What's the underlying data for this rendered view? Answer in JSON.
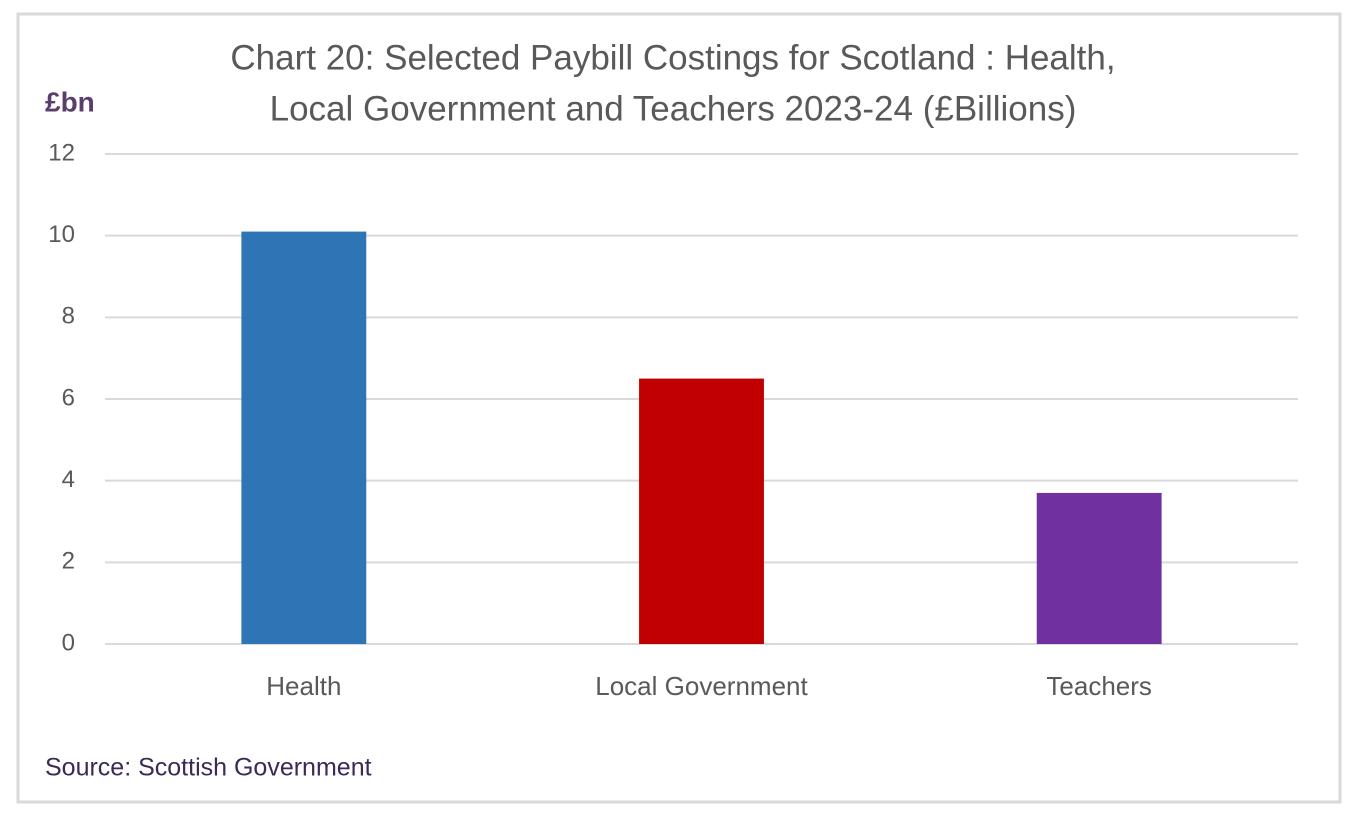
{
  "chart_data": {
    "type": "bar",
    "title": [
      "Chart 20: Selected Paybill Costings for Scotland : Health,",
      "Local Government and Teachers 2023-24 (£Billions)"
    ],
    "y_axis_label": "£bn",
    "source": "Source: Scottish Government",
    "categories": [
      "Health",
      "Local Government",
      "Teachers"
    ],
    "values": [
      10.1,
      6.5,
      3.7
    ],
    "colors": [
      "#2e75b6",
      "#c00000",
      "#7030a0"
    ],
    "ylim": [
      0,
      12
    ],
    "yticks": [
      0,
      2,
      4,
      6,
      8,
      10,
      12
    ],
    "grid": true
  }
}
